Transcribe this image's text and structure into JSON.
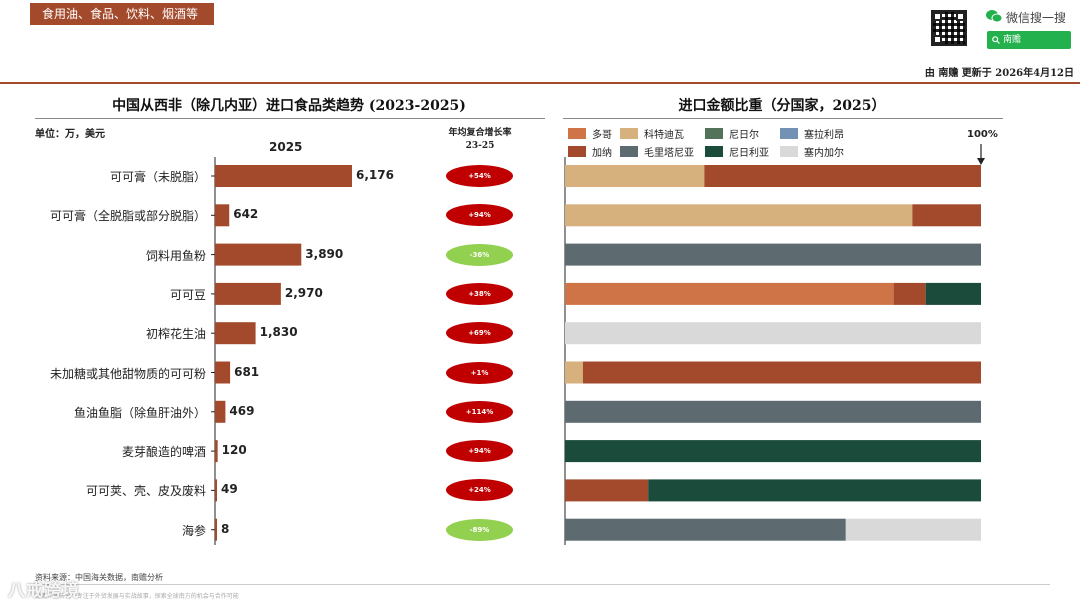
{
  "header": {
    "category_tag": "食用油、食品、饮料、烟酒等",
    "wechat_search": "微信搜一搜",
    "search_button": "南赡",
    "update_text": "由 南赡 更新于 2026年4月12日"
  },
  "left_panel": {
    "title": "中国从西非（除几内亚）进口食品类趋势 (2023-2025)",
    "unit": "单位：万，美元",
    "year_header": "2025",
    "cagr_header_line1": "年均复合增长率",
    "cagr_header_line2": "23-25"
  },
  "right_panel": {
    "title": "进口金额比重（分国家，2025）",
    "pct_label": "100%"
  },
  "legend": [
    {
      "name": "多哥",
      "color": "#cf7446"
    },
    {
      "name": "科特迪瓦",
      "color": "#d6b07d"
    },
    {
      "name": "尼日尔",
      "color": "#52735a"
    },
    {
      "name": "塞拉利昂",
      "color": "#7391b5"
    },
    {
      "name": "加纳",
      "color": "#a34a2c"
    },
    {
      "name": "毛里塔尼亚",
      "color": "#5d6b71"
    },
    {
      "name": "尼日利亚",
      "color": "#1b4b3a"
    },
    {
      "name": "塞内加尔",
      "color": "#d9d9d9"
    }
  ],
  "chart_data": [
    {
      "type": "bar",
      "orientation": "horizontal",
      "title": "中国从西非（除几内亚）进口食品类趋势 (2023-2025)",
      "unit": "万，美元",
      "year": "2025",
      "categories": [
        "可可膏（未脱脂）",
        "可可膏（全脱脂或部分脱脂）",
        "饲料用鱼粉",
        "可可豆",
        "初榨花生油",
        "未加糖或其他甜物质的可可粉",
        "鱼油鱼脂（除鱼肝油外）",
        "麦芽酿造的啤酒",
        "可可荚、壳、皮及废料",
        "海参"
      ],
      "values": [
        6176,
        642,
        3890,
        2970,
        1830,
        681,
        469,
        120,
        49,
        8
      ],
      "value_labels": [
        "6,176",
        "642",
        "3,890",
        "2,970",
        "1,830",
        "681",
        "469",
        "120",
        "49",
        "8"
      ],
      "cagr_label": "年均复合增长率 23-25",
      "cagr": [
        "+54%",
        "+94%",
        "-36%",
        "+38%",
        "+69%",
        "+1%",
        "+114%",
        "+94%",
        "+24%",
        "-89%"
      ],
      "cagr_colors": [
        "#c00000",
        "#c00000",
        "#92d050",
        "#c00000",
        "#c00000",
        "#c00000",
        "#c00000",
        "#c00000",
        "#c00000",
        "#92d050"
      ],
      "bar_color": "#a34a2c"
    },
    {
      "type": "bar",
      "orientation": "horizontal",
      "stacked": "percent",
      "title": "进口金额比重（分国家，2025）",
      "categories": [
        "可可膏（未脱脂）",
        "可可膏（全脱脂或部分脱脂）",
        "饲料用鱼粉",
        "可可豆",
        "初榨花生油",
        "未加糖或其他甜物质的可可粉",
        "鱼油鱼脂（除鱼肝油外）",
        "麦芽酿造的啤酒",
        "可可荚、壳、皮及废料",
        "海参"
      ],
      "legend_position": "top",
      "series": [
        {
          "name": "多哥",
          "color": "#cf7446",
          "values": [
            0,
            0,
            0,
            79,
            0,
            0,
            0,
            0,
            0,
            0
          ]
        },
        {
          "name": "科特迪瓦",
          "color": "#d6b07d",
          "values": [
            33.5,
            83.5,
            0,
            0,
            0,
            4.3,
            0,
            0,
            0,
            0
          ]
        },
        {
          "name": "尼日尔",
          "color": "#52735a",
          "values": [
            0,
            0,
            0,
            0,
            0,
            0,
            0,
            0,
            0,
            0
          ]
        },
        {
          "name": "塞拉利昂",
          "color": "#7391b5",
          "values": [
            0,
            0,
            0,
            0,
            0,
            0,
            0,
            0,
            0,
            0
          ]
        },
        {
          "name": "加纳",
          "color": "#a34a2c",
          "values": [
            66.5,
            16.5,
            0,
            7.7,
            0,
            95.7,
            0,
            0,
            20,
            0
          ]
        },
        {
          "name": "毛里塔尼亚",
          "color": "#5d6b71",
          "values": [
            0,
            0,
            100,
            0,
            0,
            0,
            100,
            0,
            0,
            67.5
          ]
        },
        {
          "name": "尼日利亚",
          "color": "#1b4b3a",
          "values": [
            0,
            0,
            0,
            13.3,
            0,
            0,
            0,
            100,
            80,
            0
          ]
        },
        {
          "name": "塞内加尔",
          "color": "#d9d9d9",
          "values": [
            0,
            0,
            0,
            0,
            100,
            0,
            0,
            0,
            0,
            32.5
          ]
        }
      ],
      "xlim": [
        0,
        100
      ]
    }
  ],
  "footer": {
    "source": "资料来源：中国海关数据，南赡分析",
    "note": "南赡外贸研究 · 专注于外贸发展与实战故事，探索全球南方的机会与合作可能",
    "logo": "八戒跨境"
  }
}
